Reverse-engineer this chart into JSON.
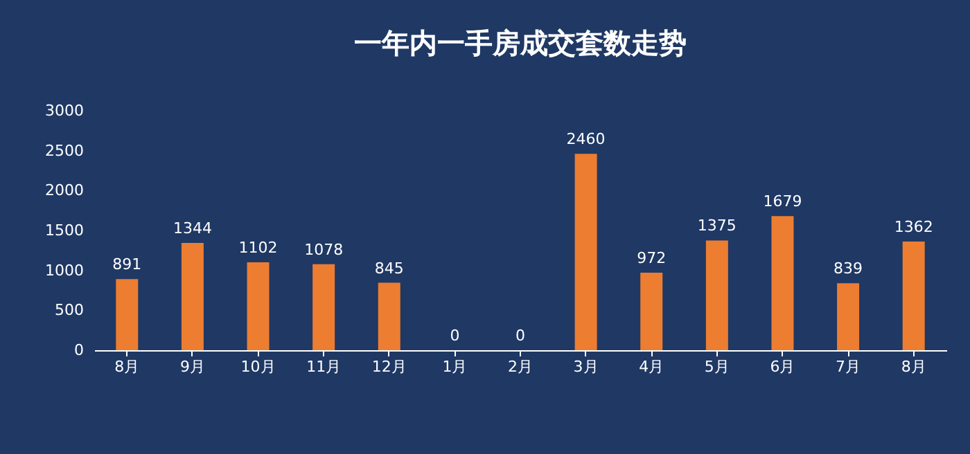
{
  "chart_data": {
    "type": "bar",
    "title": "一年内一手房成交套数走势",
    "categories": [
      "8月",
      "9月",
      "10月",
      "11月",
      "12月",
      "1月",
      "2月",
      "3月",
      "4月",
      "5月",
      "6月",
      "7月",
      "8月"
    ],
    "values": [
      891,
      1344,
      1102,
      1078,
      845,
      0,
      0,
      2460,
      972,
      1375,
      1679,
      839,
      1362
    ],
    "color": "#ed7d31",
    "ylim": [
      0,
      3000
    ],
    "yticks": [
      0,
      500,
      1000,
      1500,
      2000,
      2500,
      3000
    ],
    "grid": false,
    "data_labels": true
  }
}
